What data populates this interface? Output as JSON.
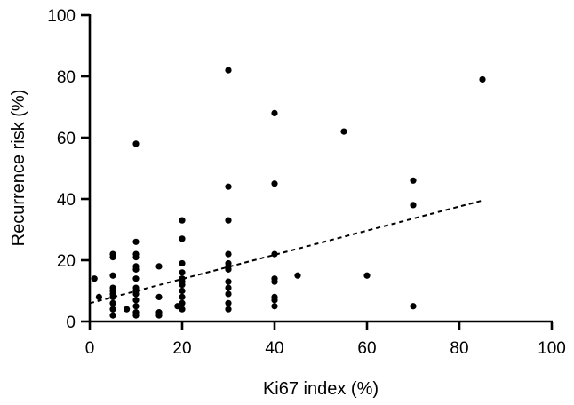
{
  "chart_data": {
    "type": "scatter",
    "xlabel": "Ki67 index (%)",
    "ylabel": "Recurrence risk (%)",
    "xlim": [
      0,
      100
    ],
    "ylim": [
      0,
      100
    ],
    "xticks": [
      0,
      20,
      40,
      60,
      80,
      100
    ],
    "yticks": [
      0,
      20,
      40,
      60,
      80,
      100
    ],
    "grid": false,
    "series": [
      {
        "points": [
          [
            1,
            14
          ],
          [
            2,
            8
          ],
          [
            5,
            2
          ],
          [
            5,
            4
          ],
          [
            5,
            6
          ],
          [
            5,
            8
          ],
          [
            5,
            9
          ],
          [
            5,
            10
          ],
          [
            5,
            11
          ],
          [
            5,
            15
          ],
          [
            5,
            21
          ],
          [
            5,
            22
          ],
          [
            8,
            4
          ],
          [
            10,
            2
          ],
          [
            10,
            3
          ],
          [
            10,
            5
          ],
          [
            10,
            7
          ],
          [
            10,
            9
          ],
          [
            10,
            10
          ],
          [
            10,
            11
          ],
          [
            10,
            14
          ],
          [
            10,
            17
          ],
          [
            10,
            18
          ],
          [
            10,
            21
          ],
          [
            10,
            22
          ],
          [
            10,
            26
          ],
          [
            10,
            58
          ],
          [
            15,
            2
          ],
          [
            15,
            3
          ],
          [
            15,
            8
          ],
          [
            15,
            18
          ],
          [
            19,
            5
          ],
          [
            20,
            4
          ],
          [
            20,
            6
          ],
          [
            20,
            8
          ],
          [
            20,
            10
          ],
          [
            20,
            12
          ],
          [
            20,
            13
          ],
          [
            20,
            14
          ],
          [
            20,
            16
          ],
          [
            20,
            19
          ],
          [
            20,
            27
          ],
          [
            20,
            33
          ],
          [
            30,
            4
          ],
          [
            30,
            6
          ],
          [
            30,
            9
          ],
          [
            30,
            11
          ],
          [
            30,
            13
          ],
          [
            30,
            17
          ],
          [
            30,
            18
          ],
          [
            30,
            19
          ],
          [
            30,
            22
          ],
          [
            30,
            33
          ],
          [
            30,
            44
          ],
          [
            30,
            82
          ],
          [
            40,
            5
          ],
          [
            40,
            7
          ],
          [
            40,
            8
          ],
          [
            40,
            13
          ],
          [
            40,
            14
          ],
          [
            40,
            22
          ],
          [
            40,
            45
          ],
          [
            40,
            68
          ],
          [
            45,
            15
          ],
          [
            55,
            62
          ],
          [
            60,
            15
          ],
          [
            70,
            5
          ],
          [
            70,
            38
          ],
          [
            70,
            46
          ],
          [
            85,
            79
          ]
        ]
      }
    ],
    "trendline": {
      "style": "dashed",
      "x": [
        0,
        85
      ],
      "y": [
        6,
        39.5
      ]
    }
  }
}
